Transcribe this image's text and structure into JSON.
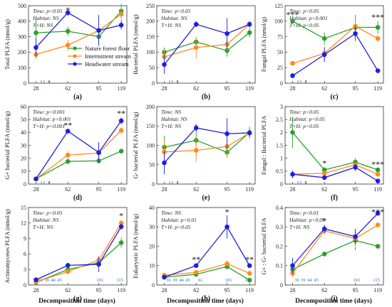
{
  "colors": {
    "nature": "#2ca02c",
    "intermittent": "#ff8c1a",
    "headwater": "#1f1fe0",
    "day_ticks": "#1f6fbf"
  },
  "legend": [
    {
      "key": "nature",
      "label": "Nature forest floor"
    },
    {
      "key": "intermittent",
      "label": "Intermittent stream"
    },
    {
      "key": "headwater",
      "label": "Headwater stream"
    }
  ],
  "xlabel": "Decomposition time (days)",
  "chart_data": [
    {
      "type": "line",
      "panel": "(a)",
      "ylabel": "Total PLFA (nmol/g)",
      "ylim": [
        0,
        500
      ],
      "yticks": [
        0,
        100,
        200,
        300,
        400,
        500
      ],
      "x": [
        28,
        62,
        95,
        119
      ],
      "annotations": [
        "Time: p<0.05",
        "Habitat: NS",
        "T×H: NS"
      ],
      "stars": [
        {
          "x": 62,
          "text": "*"
        }
      ],
      "day_ticks": [],
      "series": [
        {
          "key": "nature",
          "values": [
            325,
            335,
            300,
            465
          ],
          "err": [
            95,
            30,
            50,
            45
          ]
        },
        {
          "key": "intermittent",
          "values": [
            185,
            245,
            340,
            445
          ],
          "err": [
            30,
            35,
            40,
            40
          ]
        },
        {
          "key": "headwater",
          "values": [
            230,
            455,
            340,
            375
          ],
          "err": [
            60,
            20,
            100,
            30
          ]
        }
      ]
    },
    {
      "type": "line",
      "panel": "(b)",
      "ylabel": "Bacterial PLFA (nmol/g)",
      "ylim": [
        0,
        250
      ],
      "yticks": [
        0,
        50,
        100,
        150,
        200,
        250
      ],
      "x": [
        28,
        62,
        95,
        119
      ],
      "annotations": [
        "Time: p<0.05",
        "Habitat: NS",
        "T×H: NS"
      ],
      "stars": [],
      "day_ticks": [],
      "series": [
        {
          "key": "nature",
          "values": [
            100,
            133,
            105,
            163
          ],
          "err": [
            15,
            15,
            20,
            15
          ]
        },
        {
          "key": "intermittent",
          "values": [
            85,
            115,
            125,
            190
          ],
          "err": [
            25,
            35,
            20,
            10
          ]
        },
        {
          "key": "headwater",
          "values": [
            60,
            190,
            160,
            190
          ],
          "err": [
            30,
            10,
            50,
            10
          ]
        }
      ]
    },
    {
      "type": "line",
      "panel": "(c)",
      "ylabel": "Fungal PLFA (nmol/g)",
      "ylim": [
        0,
        125
      ],
      "yticks": [
        0,
        25,
        50,
        75,
        100,
        125
      ],
      "x": [
        28,
        62,
        95,
        119
      ],
      "annotations": [
        "Time: p<0.05",
        "Habitat: p<0.001",
        "T×H: p<0.05"
      ],
      "stars": [
        {
          "x": 28,
          "text": "***"
        },
        {
          "x": 119,
          "text": "***"
        }
      ],
      "day_ticks": [],
      "series": [
        {
          "key": "nature",
          "values": [
            100,
            72,
            90,
            90
          ],
          "err": [
            4,
            10,
            20,
            10
          ]
        },
        {
          "key": "intermittent",
          "values": [
            32,
            48,
            92,
            72
          ],
          "err": [
            3,
            10,
            10,
            5
          ]
        },
        {
          "key": "headwater",
          "values": [
            12,
            46,
            80,
            20
          ],
          "err": [
            4,
            12,
            12,
            2
          ]
        }
      ]
    },
    {
      "type": "line",
      "panel": "(d)",
      "ylabel": "G+ bacterial PLFA (nmol/g)",
      "ylim": [
        0,
        60
      ],
      "yticks": [
        0,
        10,
        20,
        30,
        40,
        50,
        60
      ],
      "x": [
        28,
        62,
        95,
        119
      ],
      "annotations": [
        "Time: p<0.001",
        "Habitat: p<0.001",
        "T×H: p<0.001"
      ],
      "stars": [
        {
          "x": 62,
          "text": "**"
        },
        {
          "x": 119,
          "text": "**"
        }
      ],
      "day_ticks": [],
      "series": [
        {
          "key": "nature",
          "values": [
            4,
            17.5,
            18,
            25.5
          ],
          "err": [
            0.5,
            1.5,
            2,
            1
          ]
        },
        {
          "key": "intermittent",
          "values": [
            4,
            22.5,
            24,
            41.5
          ],
          "err": [
            0.5,
            3,
            4,
            2.5
          ]
        },
        {
          "key": "headwater",
          "values": [
            4,
            41,
            24.5,
            49
          ],
          "err": [
            0.5,
            1.5,
            8,
            2.5
          ]
        }
      ]
    },
    {
      "type": "line",
      "panel": "(e)",
      "ylabel": "G- bacterial PLFA (nmol/g)",
      "ylim": [
        0,
        200
      ],
      "yticks": [
        0,
        50,
        100,
        150,
        200
      ],
      "x": [
        28,
        62,
        95,
        119
      ],
      "annotations": [
        "Time: NS",
        "Habitat: NS",
        "T×H: NS"
      ],
      "stars": [],
      "day_ticks": [],
      "series": [
        {
          "key": "nature",
          "values": [
            95,
            113,
            82,
            133
          ],
          "err": [
            30,
            40,
            15,
            15
          ]
        },
        {
          "key": "intermittent",
          "values": [
            83,
            87,
            97,
            132
          ],
          "err": [
            30,
            30,
            30,
            10
          ]
        },
        {
          "key": "headwater",
          "values": [
            55,
            145,
            130,
            132
          ],
          "err": [
            30,
            10,
            40,
            10
          ]
        }
      ]
    },
    {
      "type": "line",
      "panel": "(f)",
      "ylabel": "Fungal : Bacterial PLFA",
      "ylim": [
        0,
        3
      ],
      "yticks": [
        0,
        0.5,
        1,
        1.5,
        2,
        2.5,
        3
      ],
      "x": [
        28,
        62,
        95,
        119
      ],
      "annotations": [
        "Time: p<0.05",
        "Habitat: p<0.05",
        "T×H: p<0.05"
      ],
      "stars": [
        {
          "x": 62,
          "text": "*"
        },
        {
          "x": 119,
          "text": "***"
        }
      ],
      "day_ticks": [],
      "series": [
        {
          "key": "nature",
          "values": [
            2.0,
            0.55,
            0.85,
            0.55
          ],
          "err": [
            0.6,
            0.1,
            0.15,
            0.05
          ]
        },
        {
          "key": "intermittent",
          "values": [
            0.38,
            0.42,
            0.75,
            0.38
          ],
          "err": [
            0.1,
            0.1,
            0.1,
            0.05
          ]
        },
        {
          "key": "headwater",
          "values": [
            0.38,
            0.25,
            0.65,
            0.12
          ],
          "err": [
            0.15,
            0.08,
            0.15,
            0.03
          ]
        }
      ]
    },
    {
      "type": "line",
      "panel": "(g)",
      "ylabel": "Actinomycetes PLFA (nmol/g)",
      "ylim": [
        0,
        15
      ],
      "yticks": [
        0,
        3,
        6,
        9,
        12,
        15
      ],
      "x": [
        28,
        62,
        95,
        119
      ],
      "annotations": [
        "Time: p<0.05",
        "Habitat: NS",
        "T×H: NS"
      ],
      "stars": [
        {
          "x": 119,
          "text": "*"
        }
      ],
      "day_ticks": [
        "36",
        "39",
        "44",
        "45",
        "101",
        "115"
      ],
      "series": [
        {
          "key": "nature",
          "values": [
            0.5,
            3.0,
            4.3,
            8.2
          ],
          "err": [
            0.2,
            0.5,
            0.8,
            1.0
          ]
        },
        {
          "key": "intermittent",
          "values": [
            0.6,
            2.6,
            4.8,
            12.0
          ],
          "err": [
            0.2,
            0.5,
            0.8,
            0.6
          ]
        },
        {
          "key": "headwater",
          "values": [
            1.0,
            3.8,
            4.0,
            11.3
          ],
          "err": [
            0.2,
            0.5,
            1.5,
            0.6
          ]
        }
      ]
    },
    {
      "type": "line",
      "panel": "(h)",
      "ylabel": "Eukaryotic PLFA (nmol/g)",
      "ylim": [
        0,
        40
      ],
      "yticks": [
        0,
        10,
        20,
        30,
        40
      ],
      "x": [
        28,
        62,
        95,
        119
      ],
      "annotations": [
        "Time: NS",
        "Habitat: p<0.01",
        "T×H: p<0.05"
      ],
      "stars": [
        {
          "x": 62,
          "text": "**"
        },
        {
          "x": 95,
          "text": "*"
        },
        {
          "x": 119,
          "text": "**"
        }
      ],
      "day_ticks": [
        "36",
        "39",
        "44",
        "45",
        "62",
        "101",
        "115"
      ],
      "series": [
        {
          "key": "nature",
          "values": [
            4.0,
            5.5,
            9.5,
            2.5
          ],
          "err": [
            0.8,
            0.8,
            1.5,
            0.5
          ]
        },
        {
          "key": "intermittent",
          "values": [
            5.0,
            6.5,
            11.0,
            6.0
          ],
          "err": [
            1.0,
            1.0,
            1.5,
            1.0
          ]
        },
        {
          "key": "headwater",
          "values": [
            4.0,
            10.0,
            30.0,
            10.0
          ],
          "err": [
            0.8,
            1.0,
            6.0,
            1.0
          ]
        }
      ]
    },
    {
      "type": "line",
      "panel": "(i)",
      "ylabel": "G+ : G- bacterial PLFA",
      "ylim": [
        0,
        0.4
      ],
      "yticks": [
        0,
        0.1,
        0.2,
        0.3,
        0.4
      ],
      "x": [
        28,
        62,
        95,
        119
      ],
      "annotations": [
        "Time: p<0.01",
        "Habitat: p<0.05",
        "T×H: NS"
      ],
      "stars": [
        {
          "x": 62,
          "text": "*"
        },
        {
          "x": 119,
          "text": "***"
        }
      ],
      "day_ticks": [
        "36",
        "39",
        "44",
        "45",
        "101",
        "115"
      ],
      "series": [
        {
          "key": "nature",
          "values": [
            0.08,
            0.16,
            0.23,
            0.2
          ],
          "err": [
            0.02,
            0.01,
            0.05,
            0.01
          ]
        },
        {
          "key": "intermittent",
          "values": [
            0.06,
            0.28,
            0.24,
            0.31
          ],
          "err": [
            0.02,
            0.02,
            0.05,
            0.01
          ]
        },
        {
          "key": "headwater",
          "values": [
            0.1,
            0.29,
            0.25,
            0.37
          ],
          "err": [
            0.04,
            0.02,
            0.04,
            0.01
          ]
        }
      ]
    }
  ]
}
